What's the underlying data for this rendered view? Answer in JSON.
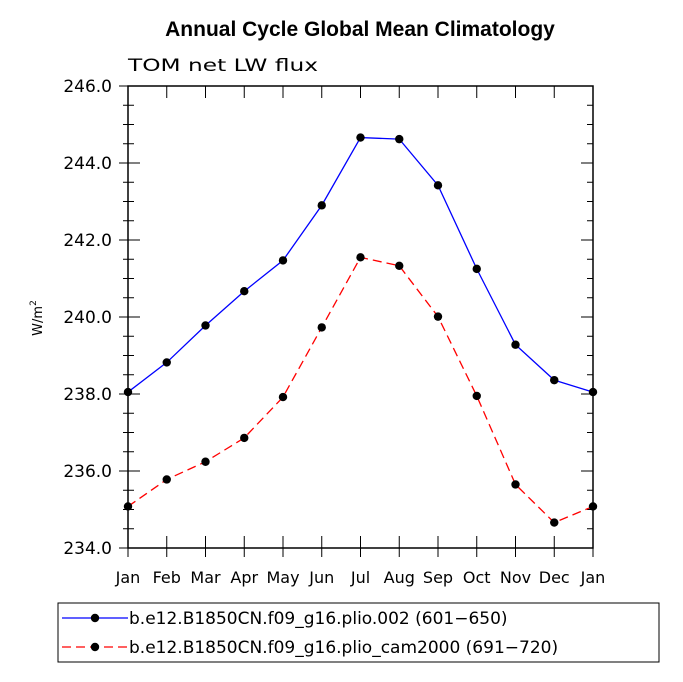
{
  "chart_data": {
    "type": "line",
    "title": "Annual Cycle Global Mean Climatology",
    "subtitle": "TOM net LW flux",
    "xlabel": "",
    "ylabel": "W/m",
    "ylabel_superscript": "2",
    "categories": [
      "Jan",
      "Feb",
      "Mar",
      "Apr",
      "May",
      "Jun",
      "Jul",
      "Aug",
      "Sep",
      "Oct",
      "Nov",
      "Dec",
      "Jan"
    ],
    "ylim": [
      234.0,
      246.0
    ],
    "yticks": [
      "234.0",
      "236.0",
      "238.0",
      "240.0",
      "242.0",
      "244.0",
      "246.0"
    ],
    "legend_position": "bottom",
    "series": [
      {
        "name": "b.e12.B1850CN.f09_g16.plio.002 (601−650)",
        "color": "#0000ff",
        "dash": "solid",
        "values": [
          238.05,
          238.82,
          239.78,
          240.67,
          241.47,
          242.9,
          244.66,
          244.62,
          243.42,
          241.25,
          239.28,
          238.36,
          238.05
        ]
      },
      {
        "name": "b.e12.B1850CN.f09_g16.plio_cam2000 (691−720)",
        "color": "#ff0000",
        "dash": "dashed",
        "values": [
          235.08,
          235.78,
          236.24,
          236.86,
          237.92,
          239.73,
          241.55,
          241.33,
          240.01,
          237.95,
          235.65,
          234.66,
          235.08
        ]
      }
    ]
  }
}
